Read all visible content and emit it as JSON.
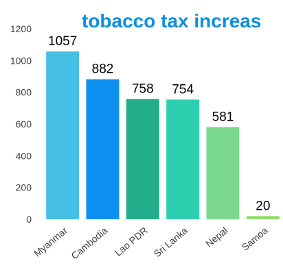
{
  "chart_data": {
    "type": "bar",
    "title": "tobacco tax increas",
    "categories": [
      "Myanmar",
      "Cambodia",
      "Lao PDR",
      "Sri Lanka",
      "Nepal",
      "Samoa"
    ],
    "values": [
      1057,
      882,
      758,
      754,
      581,
      20
    ],
    "value_labels": [
      "1057",
      "882",
      "758",
      "754",
      "581",
      "20"
    ],
    "ylim": [
      0,
      1200
    ],
    "yticks": [
      "0",
      "200",
      "400",
      "600",
      "800",
      "1000",
      "1200"
    ],
    "xlabel": "",
    "ylabel": "",
    "grid": false,
    "legend": "none",
    "bar_colors": [
      "#47bfe5",
      "#0d8ff0",
      "#22ad8a",
      "#2ecfae",
      "#7ad98c",
      "#8fdc6c"
    ],
    "title_color": "#0b8fe0"
  }
}
